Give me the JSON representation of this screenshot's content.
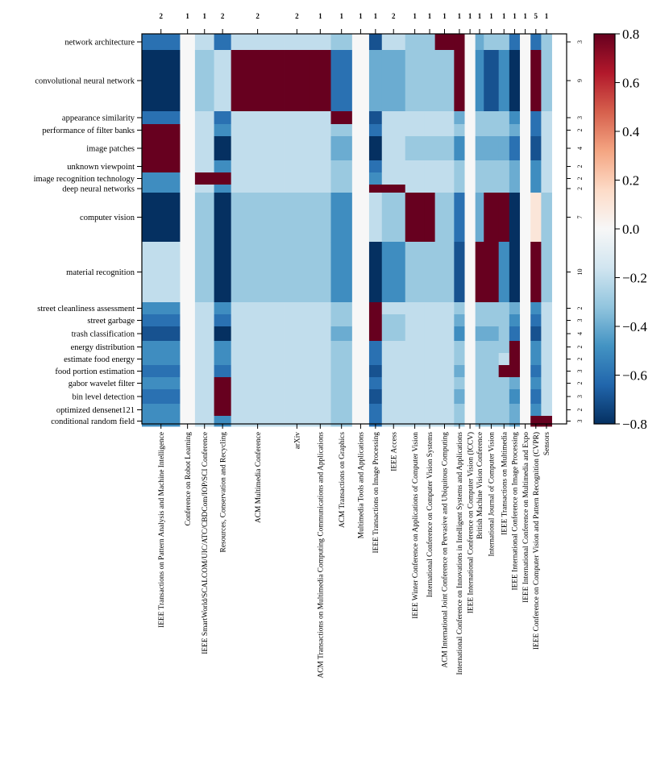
{
  "chart_data": {
    "type": "heatmap",
    "title": "",
    "xlabel": "",
    "ylabel": "",
    "x_order_fraction": [
      0,
      0.09,
      0.125,
      0.17,
      0.21,
      0.335,
      0.395,
      0.445,
      0.495,
      0.535,
      0.565,
      0.62,
      0.665,
      0.69,
      0.735,
      0.76,
      0.785,
      0.805,
      0.84,
      0.865,
      0.89,
      0.915,
      0.94,
      0.965,
      0.98,
      1.0
    ],
    "columns": [
      {
        "label": "IEEE Transactions on Pattern Analysis and Machine Intelligence",
        "count": "2"
      },
      {
        "label": "Conference on Robot Learning",
        "count": "1"
      },
      {
        "label": "IEEE SmartWorld/SCALCOM/UIC/ATC/CBDCom/IOP/SCI Conference",
        "count": "1"
      },
      {
        "label": "Resources, Conservation and Recycling",
        "count": "2"
      },
      {
        "label": "ACM Multimedia Conference",
        "count": "2"
      },
      {
        "label": "arXiv",
        "count": "2"
      },
      {
        "label": "ACM Transactions on Multimedia Computing Communications and Applications",
        "count": "1"
      },
      {
        "label": "ACM Transactions on Graphics",
        "count": "1"
      },
      {
        "label": "Multimedia Tools and Applications",
        "count": "1"
      },
      {
        "label": "IEEE Transactions on Image Processing",
        "count": "1"
      },
      {
        "label": "IEEE Access",
        "count": "2"
      },
      {
        "label": "IEEE Winter Conference on Applications of Computer Vision",
        "count": "1"
      },
      {
        "label": "International Conference on Computer Vision Systems",
        "count": "1"
      },
      {
        "label": "ACM International Joint Conference on Pervasive and Ubiquitous Computing",
        "count": "1"
      },
      {
        "label": "International Conference on Innovations in Intelligent Systems and Applications",
        "count": "1"
      },
      {
        "label": "IEEE International Conference on Computer Vision (ICCV)",
        "count": "1"
      },
      {
        "label": "British Machine Vision Conference",
        "count": "1"
      },
      {
        "label": "International Journal of Computer Vision",
        "count": "1"
      },
      {
        "label": "IEEE Transactions on Multimedia",
        "count": "1"
      },
      {
        "label": "IEEE International Conference on Image Processing",
        "count": "1"
      },
      {
        "label": "IEEE International Conference on Multimedia and Expo",
        "count": "1"
      },
      {
        "label": "IEEE Conference on Computer Vision and Pattern Recognition (CVPR)",
        "count": "5"
      },
      {
        "label": "Sensors",
        "count": "1"
      }
    ],
    "rows": [
      {
        "label": "network architecture",
        "count": "3"
      },
      {
        "label": "convolutional neural network",
        "count": "9"
      },
      {
        "label": "appearance similarity",
        "count": "3"
      },
      {
        "label": "performance of filter banks",
        "count": "2"
      },
      {
        "label": "image patches",
        "count": "4"
      },
      {
        "label": "unknown viewpoint",
        "count": "2"
      },
      {
        "label": "image recognition technology",
        "count": "2"
      },
      {
        "label": "deep neural networks",
        "count": "2"
      },
      {
        "label": "computer vision",
        "count": "7"
      },
      {
        "label": "material recognition",
        "count": "10"
      },
      {
        "label": "street cleanliness assessment",
        "count": "2"
      },
      {
        "label": "street garbage",
        "count": "3"
      },
      {
        "label": "trash classification",
        "count": "4"
      },
      {
        "label": "energy distribution",
        "count": "2"
      },
      {
        "label": "estimate food energy",
        "count": "2"
      },
      {
        "label": "food portion estimation",
        "count": "3"
      },
      {
        "label": "gabor wavelet filter",
        "count": "2"
      },
      {
        "label": "bin level detection",
        "count": "3"
      },
      {
        "label": "optimized densenet121",
        "count": "2"
      },
      {
        "label": "conditional random field",
        "count": "3"
      }
    ],
    "values": [
      [
        -0.6,
        0,
        -0.2,
        -0.6,
        -0.2,
        -0.2,
        -0.2,
        -0.3,
        0,
        -0.7,
        -0.2,
        -0.3,
        -0.3,
        0.8,
        0.8,
        0,
        -0.4,
        -0.3,
        -0.3,
        -0.6,
        0,
        -0.6,
        -0.3
      ],
      [
        -0.8,
        0,
        -0.3,
        -0.2,
        0.8,
        0.8,
        0.8,
        -0.6,
        0,
        -0.4,
        -0.4,
        -0.3,
        -0.3,
        -0.3,
        0.8,
        0,
        -0.5,
        -0.7,
        -0.5,
        -0.8,
        0,
        0.8,
        -0.3
      ],
      [
        -0.6,
        0,
        -0.2,
        -0.6,
        -0.2,
        -0.2,
        -0.2,
        0.8,
        0,
        -0.7,
        -0.2,
        -0.2,
        -0.2,
        -0.2,
        -0.4,
        0,
        -0.3,
        -0.3,
        -0.3,
        -0.5,
        0,
        -0.6,
        -0.2
      ],
      [
        0.8,
        0,
        -0.2,
        -0.5,
        -0.2,
        -0.2,
        -0.2,
        -0.3,
        0,
        -0.6,
        -0.2,
        -0.2,
        -0.2,
        -0.2,
        -0.3,
        0,
        -0.3,
        -0.3,
        -0.3,
        -0.4,
        0,
        -0.6,
        -0.2
      ],
      [
        0.8,
        0,
        -0.2,
        -0.8,
        -0.2,
        -0.2,
        -0.2,
        -0.4,
        0,
        -0.8,
        -0.2,
        -0.3,
        -0.3,
        -0.3,
        -0.5,
        0,
        -0.4,
        -0.4,
        -0.4,
        -0.6,
        0,
        -0.7,
        -0.2
      ],
      [
        0.8,
        0,
        -0.2,
        -0.5,
        -0.2,
        -0.2,
        -0.2,
        -0.3,
        0,
        -0.6,
        -0.2,
        -0.2,
        -0.2,
        -0.2,
        -0.3,
        0,
        -0.3,
        -0.3,
        -0.3,
        -0.4,
        0,
        -0.5,
        -0.2
      ],
      [
        -0.5,
        0,
        0.8,
        0.8,
        -0.2,
        -0.2,
        -0.2,
        -0.3,
        0,
        -0.5,
        -0.2,
        -0.2,
        -0.2,
        -0.2,
        -0.3,
        0,
        -0.3,
        -0.3,
        -0.3,
        -0.4,
        0,
        -0.5,
        -0.2
      ],
      [
        -0.5,
        0,
        -0.2,
        -0.5,
        -0.2,
        -0.2,
        -0.2,
        -0.3,
        0,
        0.8,
        0.8,
        -0.2,
        -0.2,
        -0.2,
        -0.3,
        0,
        -0.3,
        -0.3,
        -0.3,
        -0.4,
        0,
        -0.5,
        -0.2
      ],
      [
        -0.8,
        0,
        -0.3,
        -0.8,
        -0.3,
        -0.3,
        -0.3,
        -0.5,
        0,
        -0.2,
        -0.3,
        0.8,
        0.8,
        -0.3,
        -0.6,
        0,
        -0.4,
        0.8,
        0.8,
        -0.8,
        0,
        0.1,
        -0.3
      ],
      [
        -0.2,
        0,
        -0.3,
        -0.8,
        -0.3,
        -0.3,
        -0.3,
        -0.5,
        0,
        -0.8,
        -0.5,
        -0.3,
        -0.3,
        -0.3,
        -0.7,
        0,
        0.8,
        0.8,
        -0.5,
        -0.8,
        0,
        0.8,
        -0.3
      ],
      [
        -0.5,
        0,
        -0.2,
        -0.5,
        -0.2,
        -0.2,
        -0.2,
        -0.3,
        0,
        0.8,
        -0.2,
        -0.2,
        -0.2,
        -0.2,
        -0.3,
        0,
        -0.3,
        -0.3,
        -0.3,
        -0.4,
        0,
        -0.5,
        -0.2
      ],
      [
        -0.6,
        0,
        -0.2,
        -0.6,
        -0.2,
        -0.2,
        -0.2,
        -0.3,
        0,
        0.8,
        -0.3,
        -0.2,
        -0.2,
        -0.2,
        -0.4,
        0,
        -0.3,
        -0.3,
        -0.3,
        -0.5,
        0,
        -0.6,
        -0.2
      ],
      [
        -0.7,
        0,
        -0.2,
        -0.8,
        -0.2,
        -0.2,
        -0.2,
        -0.4,
        0,
        0.8,
        -0.3,
        -0.2,
        -0.2,
        -0.2,
        -0.5,
        0,
        -0.4,
        -0.4,
        -0.3,
        -0.6,
        0,
        -0.7,
        -0.2
      ],
      [
        -0.5,
        0,
        -0.2,
        -0.5,
        -0.2,
        -0.2,
        -0.2,
        -0.3,
        0,
        -0.6,
        -0.2,
        -0.2,
        -0.2,
        -0.2,
        -0.3,
        0,
        -0.3,
        -0.3,
        -0.3,
        0.8,
        0,
        -0.5,
        -0.2
      ],
      [
        -0.5,
        0,
        -0.2,
        -0.5,
        -0.2,
        -0.2,
        -0.2,
        -0.3,
        0,
        -0.6,
        -0.2,
        -0.2,
        -0.2,
        -0.2,
        -0.3,
        0,
        -0.3,
        -0.3,
        -0.2,
        0.8,
        0,
        -0.5,
        -0.2
      ],
      [
        -0.6,
        0,
        -0.2,
        -0.6,
        -0.2,
        -0.2,
        -0.2,
        -0.3,
        0,
        -0.7,
        -0.2,
        -0.2,
        -0.2,
        -0.2,
        -0.4,
        0,
        -0.3,
        -0.3,
        0.8,
        0.8,
        0,
        -0.6,
        -0.2
      ],
      [
        -0.5,
        0,
        -0.2,
        0.8,
        -0.2,
        -0.2,
        -0.2,
        -0.3,
        0,
        -0.6,
        -0.2,
        -0.2,
        -0.2,
        -0.2,
        -0.3,
        0,
        -0.3,
        -0.3,
        -0.3,
        -0.4,
        0,
        -0.5,
        -0.2
      ],
      [
        -0.6,
        0,
        -0.2,
        0.8,
        -0.2,
        -0.2,
        -0.2,
        -0.3,
        0,
        -0.7,
        -0.2,
        -0.2,
        -0.2,
        -0.2,
        -0.4,
        0,
        -0.3,
        -0.3,
        -0.3,
        -0.5,
        0,
        -0.6,
        -0.2
      ],
      [
        -0.5,
        0,
        -0.2,
        0.8,
        -0.2,
        -0.2,
        -0.2,
        -0.3,
        0,
        -0.6,
        -0.2,
        -0.2,
        -0.2,
        -0.2,
        -0.3,
        0,
        -0.3,
        -0.3,
        -0.3,
        -0.4,
        0,
        -0.5,
        -0.2
      ],
      [
        -0.5,
        0,
        -0.2,
        -0.5,
        -0.2,
        -0.2,
        -0.2,
        -0.3,
        0,
        -0.6,
        -0.2,
        -0.2,
        -0.2,
        -0.2,
        -0.3,
        0,
        -0.3,
        -0.3,
        -0.3,
        -0.4,
        0,
        0.8,
        0.8
      ]
    ],
    "colorbar": {
      "vmin": -0.8,
      "vmax": 0.8,
      "ticks": [
        "0.8",
        "0.6",
        "0.4",
        "0.2",
        "0.0",
        "−0.2",
        "−0.4",
        "−0.6",
        "−0.8"
      ],
      "colormap": "RdBu_r",
      "stops": [
        "#053061",
        "#2166ac",
        "#4393c3",
        "#92c5de",
        "#d1e5f0",
        "#f7f7f7",
        "#fddbc7",
        "#f4a582",
        "#d6604d",
        "#b2182b",
        "#67001f"
      ]
    }
  }
}
